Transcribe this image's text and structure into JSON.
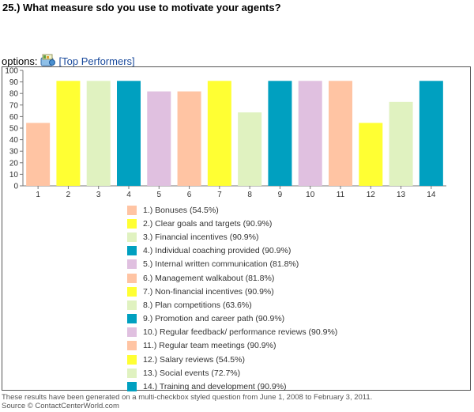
{
  "question": "25.) What measure sdo you use to motivate your agents?",
  "options_label": "options:",
  "options_icon": "chart-settings-icon",
  "options_link": "[Top Performers]",
  "chart_data": {
    "type": "bar",
    "categories": [
      "1",
      "2",
      "3",
      "4",
      "5",
      "6",
      "7",
      "8",
      "9",
      "10",
      "11",
      "12",
      "13",
      "14"
    ],
    "values": [
      54.5,
      90.9,
      90.9,
      90.9,
      81.8,
      81.8,
      90.9,
      63.6,
      90.9,
      90.9,
      90.9,
      54.5,
      72.7,
      90.9
    ],
    "colors": [
      "#ffc4a3",
      "#ffff33",
      "#e0f2c0",
      "#00a0c0",
      "#e0c0e0",
      "#ffc4a3",
      "#ffff33",
      "#e0f2c0",
      "#00a0c0",
      "#e0c0e0",
      "#ffc4a3",
      "#ffff33",
      "#e0f2c0",
      "#00a0c0"
    ],
    "ylim": [
      0,
      100
    ],
    "yticks": [
      0,
      10,
      20,
      30,
      40,
      50,
      60,
      70,
      80,
      90,
      100
    ],
    "grid": false,
    "legend": [
      "1.) Bonuses (54.5%)",
      "2.) Clear goals and targets (90.9%)",
      "3.) Financial incentives (90.9%)",
      "4.) Individual coaching provided (90.9%)",
      "5.) Internal written communication (81.8%)",
      "6.) Management walkabout (81.8%)",
      "7.) Non-financial incentives (90.9%)",
      "8.) Plan competitions (63.6%)",
      "9.) Promotion and career path (90.9%)",
      "10.) Regular feedback/ performance reviews (90.9%)",
      "11.) Regular team meetings (90.9%)",
      "12.) Salary reviews (54.5%)",
      "13.) Social events (72.7%)",
      "14.) Training and development (90.9%)"
    ]
  },
  "footnote": {
    "line1": "These results have been generated on a multi-checkbox styled question from June 1, 2008 to February 3, 2011.",
    "line2": "Source © ContactCenterWorld.com"
  }
}
